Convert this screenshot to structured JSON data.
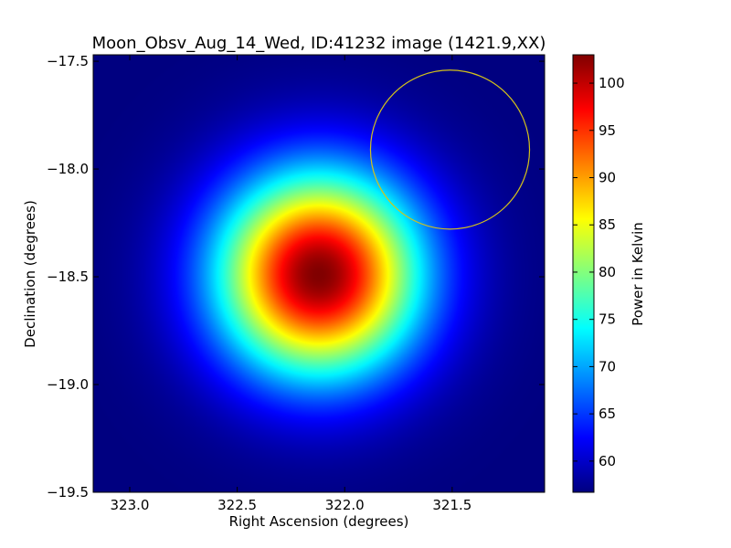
{
  "chart_data": {
    "type": "heatmap",
    "title": "Moon_Obsv_Aug_14_Wed, ID:41232 image (1421.9,XX)",
    "xlabel": "Right Ascension (degrees)",
    "ylabel": "Declination (degrees)",
    "xlim": [
      323.17,
      321.07
    ],
    "ylim": [
      -19.5,
      -17.47
    ],
    "x_ticks": [
      {
        "value": 323.0,
        "label": "323.0"
      },
      {
        "value": 322.5,
        "label": "322.5"
      },
      {
        "value": 322.0,
        "label": "322.0"
      },
      {
        "value": 321.5,
        "label": "321.5"
      }
    ],
    "y_ticks": [
      {
        "value": -17.5,
        "label": "−17.5"
      },
      {
        "value": -18.0,
        "label": "−18.0"
      },
      {
        "value": -18.5,
        "label": "−18.5"
      },
      {
        "value": -19.0,
        "label": "−19.0"
      },
      {
        "value": -19.5,
        "label": "−19.5"
      }
    ],
    "colormap": "jet",
    "source": {
      "ra_center": 322.12,
      "dec_center": -18.49,
      "peak_kelvin": 103,
      "background_kelvin": 56.7,
      "sigma_degrees": 0.33
    },
    "circle_marker": {
      "ra_center": 321.51,
      "dec_center": -17.91,
      "radius_degrees": 0.37,
      "color": "#d4c21a"
    },
    "colorbar": {
      "label": "Power in Kelvin",
      "range": [
        56.7,
        103
      ],
      "ticks": [
        {
          "value": 60,
          "label": "60"
        },
        {
          "value": 65,
          "label": "65"
        },
        {
          "value": 70,
          "label": "70"
        },
        {
          "value": 75,
          "label": "75"
        },
        {
          "value": 80,
          "label": "80"
        },
        {
          "value": 85,
          "label": "85"
        },
        {
          "value": 90,
          "label": "90"
        },
        {
          "value": 95,
          "label": "95"
        },
        {
          "value": 100,
          "label": "100"
        }
      ]
    }
  }
}
